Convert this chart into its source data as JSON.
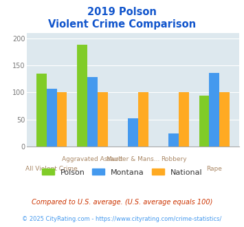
{
  "title_line1": "2019 Polson",
  "title_line2": "Violent Crime Comparison",
  "categories": [
    "All Violent Crime",
    "Aggravated Assault",
    "Murder & Mans...",
    "Robbery",
    "Rape"
  ],
  "polson": [
    135,
    188,
    0,
    0,
    94
  ],
  "montana": [
    107,
    128,
    52,
    24,
    136
  ],
  "national": [
    100,
    100,
    100,
    100,
    100
  ],
  "polson_color": "#80cc28",
  "montana_color": "#4499ee",
  "national_color": "#ffaa22",
  "ylim": [
    0,
    210
  ],
  "yticks": [
    0,
    50,
    100,
    150,
    200
  ],
  "bg_color": "#dde8ee",
  "fig_bg": "#ffffff",
  "title_color": "#1155cc",
  "xlabel_top_labels": [
    "",
    "Aggravated Assault",
    "Murder & Mans...",
    "Robbery",
    ""
  ],
  "xlabel_bot_labels": [
    "All Violent Crime",
    "",
    "",
    "",
    "Rape"
  ],
  "xlabel_color": "#aa8866",
  "footnote1": "Compared to U.S. average. (U.S. average equals 100)",
  "footnote2": "© 2025 CityRating.com - https://www.cityrating.com/crime-statistics/",
  "footnote1_color": "#cc3300",
  "footnote2_color": "#4499ee",
  "legend_labels": [
    "Polson",
    "Montana",
    "National"
  ],
  "legend_text_color": "#333333",
  "bar_width": 0.25
}
